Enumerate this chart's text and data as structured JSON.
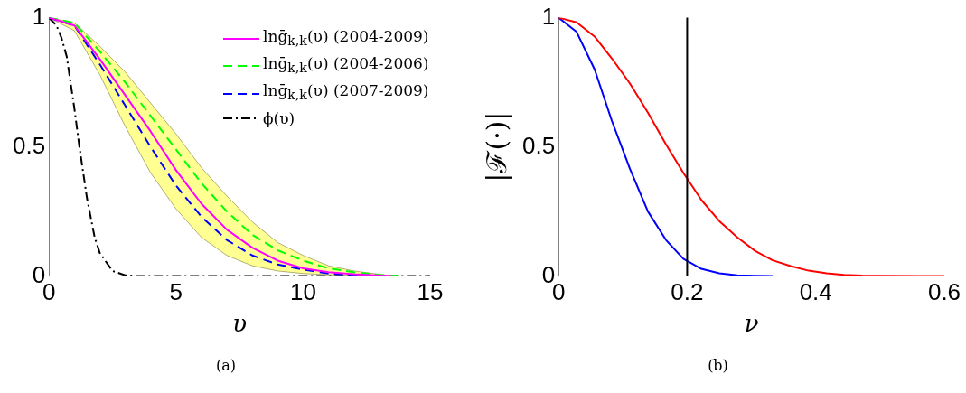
{
  "chart_data": [
    {
      "type": "line",
      "xlabel": "υ",
      "xlim": [
        0,
        15
      ],
      "ylim": [
        0,
        1
      ],
      "xticks": [
        0,
        5,
        10,
        15
      ],
      "yticks": [
        0,
        0.5,
        1
      ],
      "grid": false,
      "legend": "top right",
      "annotations": [
        "(a)"
      ],
      "series": [
        {
          "name": "lnḡ$_{k,k}$(υ) (2004-2009)",
          "color": "#ff00ff",
          "line_style": "solid",
          "x": [
            0,
            1,
            2,
            3,
            4,
            5,
            6,
            7,
            8,
            9,
            10,
            11,
            12,
            13,
            13.5
          ],
          "values": [
            1,
            0.97,
            0.84,
            0.7,
            0.56,
            0.41,
            0.28,
            0.18,
            0.11,
            0.06,
            0.03,
            0.015,
            0.007,
            0.002,
            0
          ],
          "lower": [
            1,
            0.95,
            0.78,
            0.58,
            0.4,
            0.26,
            0.15,
            0.08,
            0.04,
            0.02,
            0.01,
            0.005,
            0.002,
            0.001,
            0
          ],
          "upper": [
            1,
            0.98,
            0.89,
            0.79,
            0.67,
            0.55,
            0.42,
            0.31,
            0.21,
            0.13,
            0.08,
            0.04,
            0.02,
            0.007,
            0
          ]
        },
        {
          "name": "lnḡ$_{k,k}$(υ) (2004-2006)",
          "color": "#00ff00",
          "line_style": "dashed",
          "x": [
            0,
            1,
            2,
            3,
            4,
            5,
            6,
            7,
            8,
            9,
            10,
            11,
            12,
            13,
            13.8
          ],
          "values": [
            1,
            0.98,
            0.87,
            0.75,
            0.62,
            0.49,
            0.36,
            0.25,
            0.16,
            0.1,
            0.06,
            0.03,
            0.015,
            0.005,
            0
          ]
        },
        {
          "name": "lnḡ$_{k,k}$(υ) (2007-2009)",
          "color": "#0000ff",
          "line_style": "dashed",
          "x": [
            0,
            1,
            2,
            3,
            4,
            5,
            6,
            7,
            8,
            9,
            10,
            11,
            12,
            13,
            13.2
          ],
          "values": [
            1,
            0.97,
            0.82,
            0.66,
            0.5,
            0.35,
            0.23,
            0.14,
            0.08,
            0.045,
            0.025,
            0.01,
            0.004,
            0.001,
            0
          ]
        },
        {
          "name": "ϕ(υ)",
          "color": "#000000",
          "line_style": "dashdot",
          "x": [
            0,
            0.3,
            0.5,
            0.7,
            1,
            1.2,
            1.5,
            1.8,
            2,
            2.5,
            3,
            3.5,
            15
          ],
          "values": [
            1,
            0.97,
            0.92,
            0.85,
            0.65,
            0.5,
            0.3,
            0.15,
            0.09,
            0.02,
            0.003,
            0,
            0
          ]
        }
      ]
    },
    {
      "type": "line",
      "xlabel": "ν",
      "ylabel": "|ℱ(·)|",
      "xlim": [
        0,
        0.6
      ],
      "ylim": [
        0,
        1
      ],
      "xticks": [
        0,
        0.2,
        0.4,
        0.6
      ],
      "yticks": [
        0,
        0.5,
        1
      ],
      "grid": false,
      "legend": false,
      "annotations": [
        "(b)"
      ],
      "ref_lines": [
        {
          "axis": "x",
          "value": 0.2,
          "color": "#000000"
        }
      ],
      "series": [
        {
          "color": "#ff0000",
          "line_style": "solid",
          "x": [
            0,
            0.028,
            0.056,
            0.083,
            0.111,
            0.139,
            0.167,
            0.194,
            0.222,
            0.25,
            0.278,
            0.306,
            0.333,
            0.361,
            0.389,
            0.417,
            0.444,
            0.472,
            0.5,
            0.6
          ],
          "values": [
            1,
            0.982,
            0.927,
            0.842,
            0.745,
            0.632,
            0.51,
            0.4,
            0.295,
            0.213,
            0.15,
            0.097,
            0.061,
            0.039,
            0.021,
            0.011,
            0.005,
            0.002,
            0.001,
            0
          ]
        },
        {
          "color": "#0000ff",
          "line_style": "solid",
          "x": [
            0,
            0.028,
            0.056,
            0.083,
            0.111,
            0.139,
            0.167,
            0.194,
            0.222,
            0.25,
            0.278,
            0.306,
            0.333
          ],
          "values": [
            1,
            0.945,
            0.8,
            0.6,
            0.415,
            0.25,
            0.14,
            0.067,
            0.028,
            0.011,
            0.003,
            0.001,
            0
          ]
        }
      ]
    }
  ]
}
